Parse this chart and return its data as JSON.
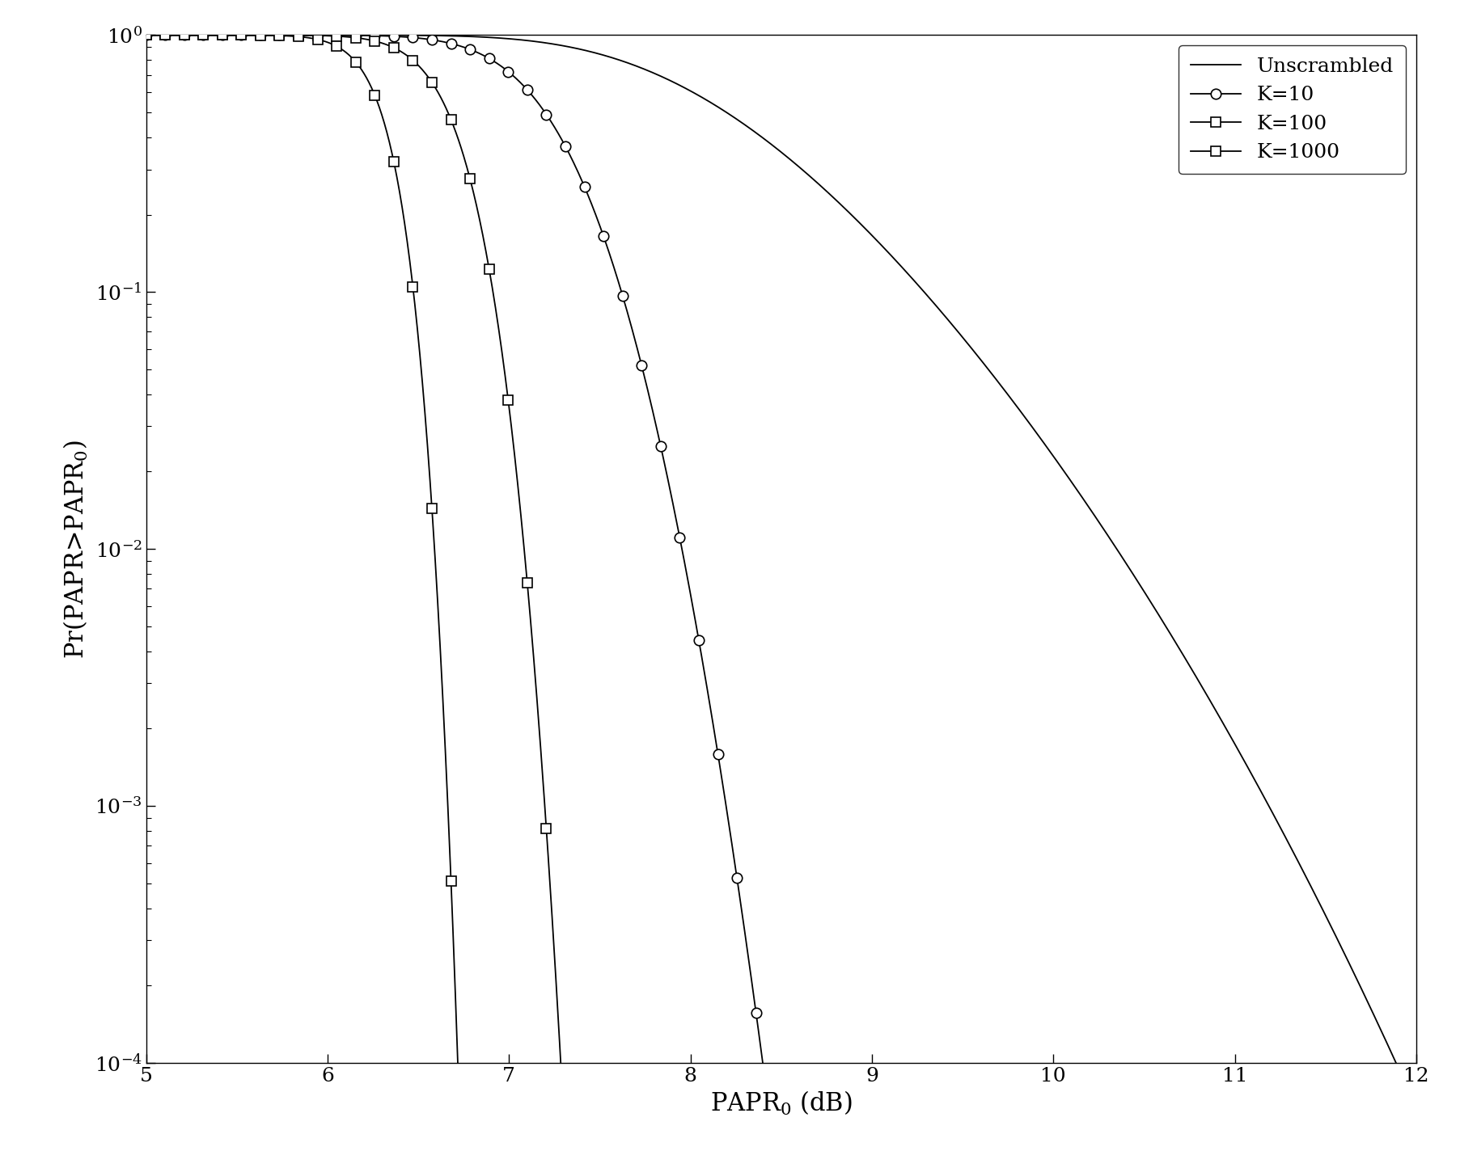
{
  "title": "",
  "xlabel": "PAPR$_0$ (dB)",
  "ylabel": "Pr(PAPR>PAPR$_0$)",
  "xlim": [
    5,
    12
  ],
  "ylim": [
    0.0001,
    1
  ],
  "legend_labels": [
    "Unscrambled",
    "K=10",
    "K=100",
    "K=1000"
  ],
  "xticks": [
    5,
    6,
    7,
    8,
    9,
    10,
    11,
    12
  ],
  "N_subcarriers": 512,
  "K_values": [
    10,
    100,
    1000
  ],
  "marker_step_k10": 30,
  "marker_step_k100": 30,
  "marker_step_k1000": 30,
  "line_color": "#000000",
  "background_color": "#ffffff",
  "figsize": [
    18.05,
    14.45
  ],
  "dpi": 100
}
